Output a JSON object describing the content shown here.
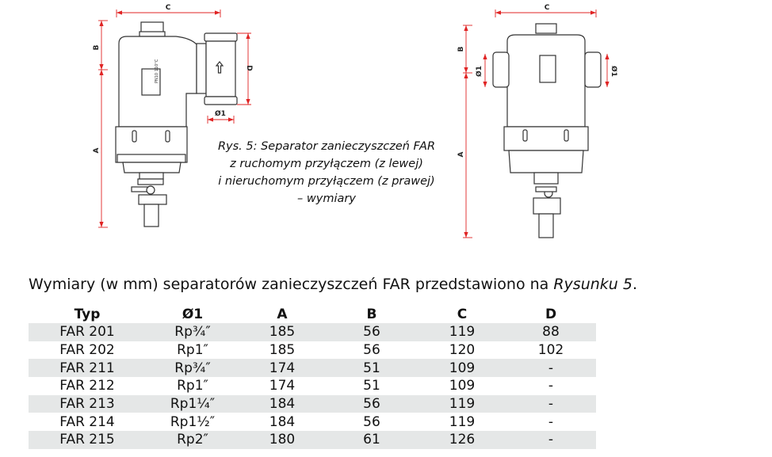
{
  "figure": {
    "caption_lines": [
      "Rys. 5: Separator zanieczyszczeń FAR",
      "z ruchomym przyłączem (z lewej)",
      "i nieruchomym przyłączem (z prawej)",
      "– wymiary"
    ],
    "dimension_labels": {
      "a": "A",
      "b": "B",
      "c": "C",
      "d": "D",
      "o1": "Ø1"
    },
    "device_label": "PN10 110°C",
    "dimension_color": "#e02424"
  },
  "intro": {
    "text": "Wymiary (w mm) separatorów zanieczyszczeń FAR przedstawiono na ",
    "ref": "Rysunku 5",
    "end": "."
  },
  "table": {
    "headers": [
      "Typ",
      "Ø1",
      "A",
      "B",
      "C",
      "D"
    ],
    "rows": [
      [
        "FAR 201",
        "Rp¾″",
        "185",
        "56",
        "119",
        "88"
      ],
      [
        "FAR 202",
        "Rp1″",
        "185",
        "56",
        "120",
        "102"
      ],
      [
        "FAR 211",
        "Rp¾″",
        "174",
        "51",
        "109",
        "-"
      ],
      [
        "FAR 212",
        "Rp1″",
        "174",
        "51",
        "109",
        "-"
      ],
      [
        "FAR 213",
        "Rp1¼″",
        "184",
        "56",
        "119",
        "-"
      ],
      [
        "FAR 214",
        "Rp1½″",
        "184",
        "56",
        "119",
        "-"
      ],
      [
        "FAR 215",
        "Rp2″",
        "180",
        "61",
        "126",
        "-"
      ]
    ]
  }
}
